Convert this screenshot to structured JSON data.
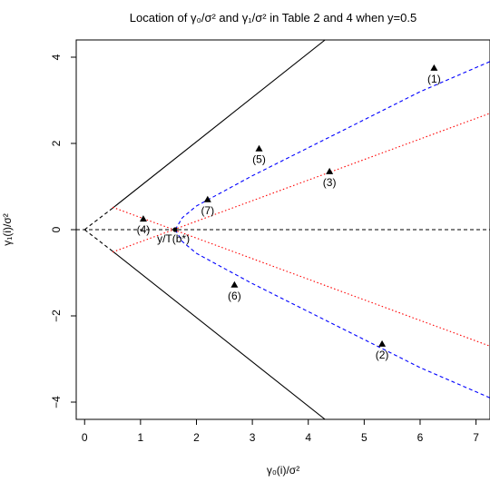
{
  "chart_data": {
    "type": "scatter",
    "title": "Location of γ₀/σ² and γ₁/σ² in Table 2 and 4 when y=0.5",
    "xlabel": "γ₀(i)/σ²",
    "ylabel": "γ₁(i)/σ²",
    "xlim": [
      -0.15,
      7.25
    ],
    "ylim": [
      -4.4,
      4.4
    ],
    "x_ticks": [
      0,
      1,
      2,
      3,
      4,
      5,
      6,
      7
    ],
    "y_ticks": [
      -4,
      -2,
      0,
      2,
      4
    ],
    "y_tick_labels": [
      "−4",
      "−2",
      "0",
      "2",
      "4"
    ],
    "points": [
      {
        "label": "(1)",
        "x": 6.25,
        "y": 3.75
      },
      {
        "label": "(2)",
        "x": 5.32,
        "y": -2.65
      },
      {
        "label": "(3)",
        "x": 4.38,
        "y": 1.35
      },
      {
        "label": "(4)",
        "x": 1.05,
        "y": 0.25
      },
      {
        "label": "(5)",
        "x": 3.12,
        "y": 1.88
      },
      {
        "label": "(6)",
        "x": 2.68,
        "y": -1.28
      },
      {
        "label": "(7)",
        "x": 2.2,
        "y": 0.7
      }
    ],
    "special_point": {
      "label": "y/T(b*)",
      "x": 1.62,
      "y": 0.0
    },
    "lines": [
      {
        "style": "solid",
        "color": "#000000",
        "points": [
          [
            0.5,
            0.5
          ],
          [
            4.3,
            4.4
          ]
        ]
      },
      {
        "style": "solid",
        "color": "#000000",
        "points": [
          [
            0.5,
            -0.5
          ],
          [
            4.3,
            -4.4
          ]
        ]
      },
      {
        "style": "dashed",
        "color": "#000000",
        "points": [
          [
            0,
            0
          ],
          [
            0.5,
            0.5
          ]
        ]
      },
      {
        "style": "dashed",
        "color": "#000000",
        "points": [
          [
            0,
            0
          ],
          [
            0.5,
            -0.5
          ]
        ]
      },
      {
        "style": "dashed",
        "color": "#000000",
        "points": [
          [
            -0.15,
            0
          ],
          [
            7.25,
            0
          ]
        ]
      },
      {
        "style": "dotted",
        "color": "#ff0000",
        "points": [
          [
            0.5,
            0.52
          ],
          [
            7.25,
            -2.7
          ]
        ]
      },
      {
        "style": "dotted",
        "color": "#ff0000",
        "points": [
          [
            0.5,
            -0.52
          ],
          [
            7.25,
            2.7
          ]
        ]
      },
      {
        "style": "dashed",
        "color": "#0000ff",
        "points": [
          [
            1.62,
            0
          ],
          [
            1.75,
            0.28
          ],
          [
            2.0,
            0.55
          ],
          [
            2.5,
            0.9
          ],
          [
            3.0,
            1.25
          ],
          [
            4.0,
            1.9
          ],
          [
            5.0,
            2.55
          ],
          [
            6.0,
            3.2
          ],
          [
            7.25,
            3.9
          ]
        ]
      },
      {
        "style": "dashed",
        "color": "#0000ff",
        "points": [
          [
            1.62,
            0
          ],
          [
            1.75,
            -0.28
          ],
          [
            2.0,
            -0.55
          ],
          [
            2.5,
            -0.9
          ],
          [
            3.0,
            -1.25
          ],
          [
            4.0,
            -1.9
          ],
          [
            5.0,
            -2.55
          ],
          [
            6.0,
            -3.2
          ],
          [
            7.25,
            -3.9
          ]
        ]
      }
    ]
  }
}
